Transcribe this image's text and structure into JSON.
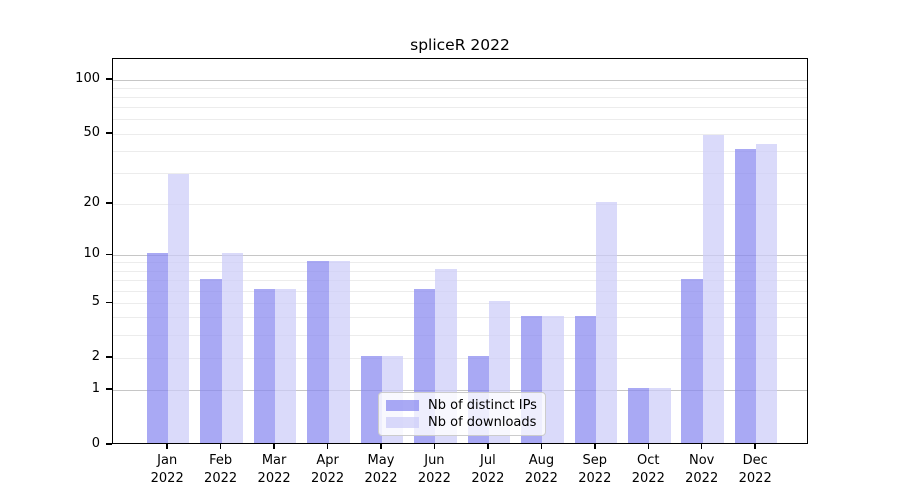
{
  "title": "spliceR 2022",
  "chart_data": {
    "type": "bar",
    "title": "spliceR 2022",
    "categories": [
      "Jan 2022",
      "Feb 2022",
      "Mar 2022",
      "Apr 2022",
      "May 2022",
      "Jun 2022",
      "Jul 2022",
      "Aug 2022",
      "Sep 2022",
      "Oct 2022",
      "Nov 2022",
      "Dec 2022"
    ],
    "series": [
      {
        "name": "Nb of distinct IPs",
        "values": [
          10,
          7,
          6,
          9,
          2,
          6,
          2,
          4,
          4,
          1,
          7,
          40
        ],
        "color": "rgba(136,136,240,0.72)"
      },
      {
        "name": "Nb of downloads",
        "values": [
          29,
          10,
          6,
          9,
          2,
          8,
          5,
          4,
          20,
          1,
          48,
          43
        ],
        "color": "rgba(204,204,248,0.72)"
      }
    ],
    "xlabel": "",
    "ylabel": "",
    "yscale": "log10(1+x)",
    "ylim": [
      0,
      131
    ],
    "yticks": [
      0,
      1,
      2,
      5,
      10,
      20,
      50,
      100
    ],
    "grid_values_minor": [
      2,
      3,
      4,
      5,
      6,
      7,
      8,
      9,
      20,
      30,
      40,
      50,
      60,
      70,
      80,
      90
    ],
    "grid_values_major": [
      1,
      10,
      100
    ],
    "grid": true,
    "legend_position": "lower center inside",
    "colors": {
      "grid_minor": "#ececec",
      "grid_major": "#c6c6c6",
      "axis": "#000000",
      "background": "#ffffff"
    }
  }
}
